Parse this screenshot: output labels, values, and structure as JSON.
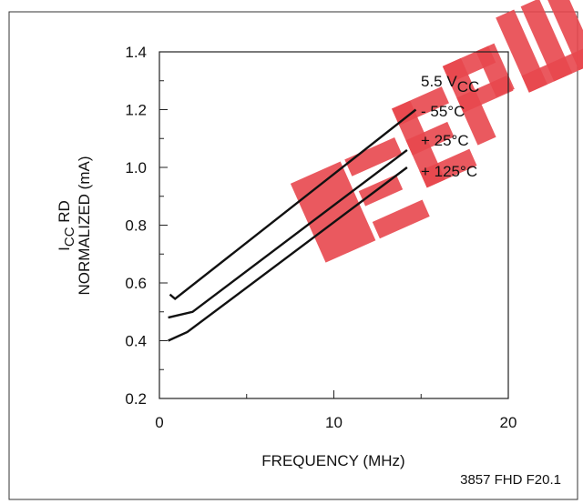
{
  "chart_data": {
    "type": "line",
    "xlabel": "FREQUENCY (MHz)",
    "ylabel": {
      "line1_main": "I",
      "line1_sub": "CC",
      "line1_rest": " RD",
      "line2": "NORMALIZED (mA)"
    },
    "xlim": [
      0,
      20
    ],
    "ylim": [
      0.2,
      1.4
    ],
    "x_ticks": [
      0,
      10,
      20
    ],
    "x_tick_labels": [
      "0",
      "10",
      "20"
    ],
    "y_ticks": [
      0.2,
      0.4,
      0.6,
      0.8,
      1.0,
      1.2,
      1.4
    ],
    "y_tick_labels": [
      "0.2",
      "0.4",
      "0.6",
      "0.8",
      "1.0",
      "1.2",
      "1.4"
    ],
    "grid": false,
    "legend_header": {
      "main": "5.5 V",
      "sub": "CC"
    },
    "series": [
      {
        "name": "- 55°C",
        "x": [
          0.6,
          0.9,
          14.7
        ],
        "y": [
          0.56,
          0.545,
          1.2
        ]
      },
      {
        "name": "+ 25°C",
        "x": [
          0.5,
          1.9,
          14.2
        ],
        "y": [
          0.48,
          0.5,
          1.06
        ]
      },
      {
        "name": "+ 125°C",
        "x": [
          0.5,
          1.6,
          14.2
        ],
        "y": [
          0.4,
          0.43,
          1.0
        ]
      }
    ],
    "line_color": "#111111",
    "watermark_color": "#e8474e"
  },
  "footer": {
    "figure_id": "3857 FHD F20.1"
  }
}
